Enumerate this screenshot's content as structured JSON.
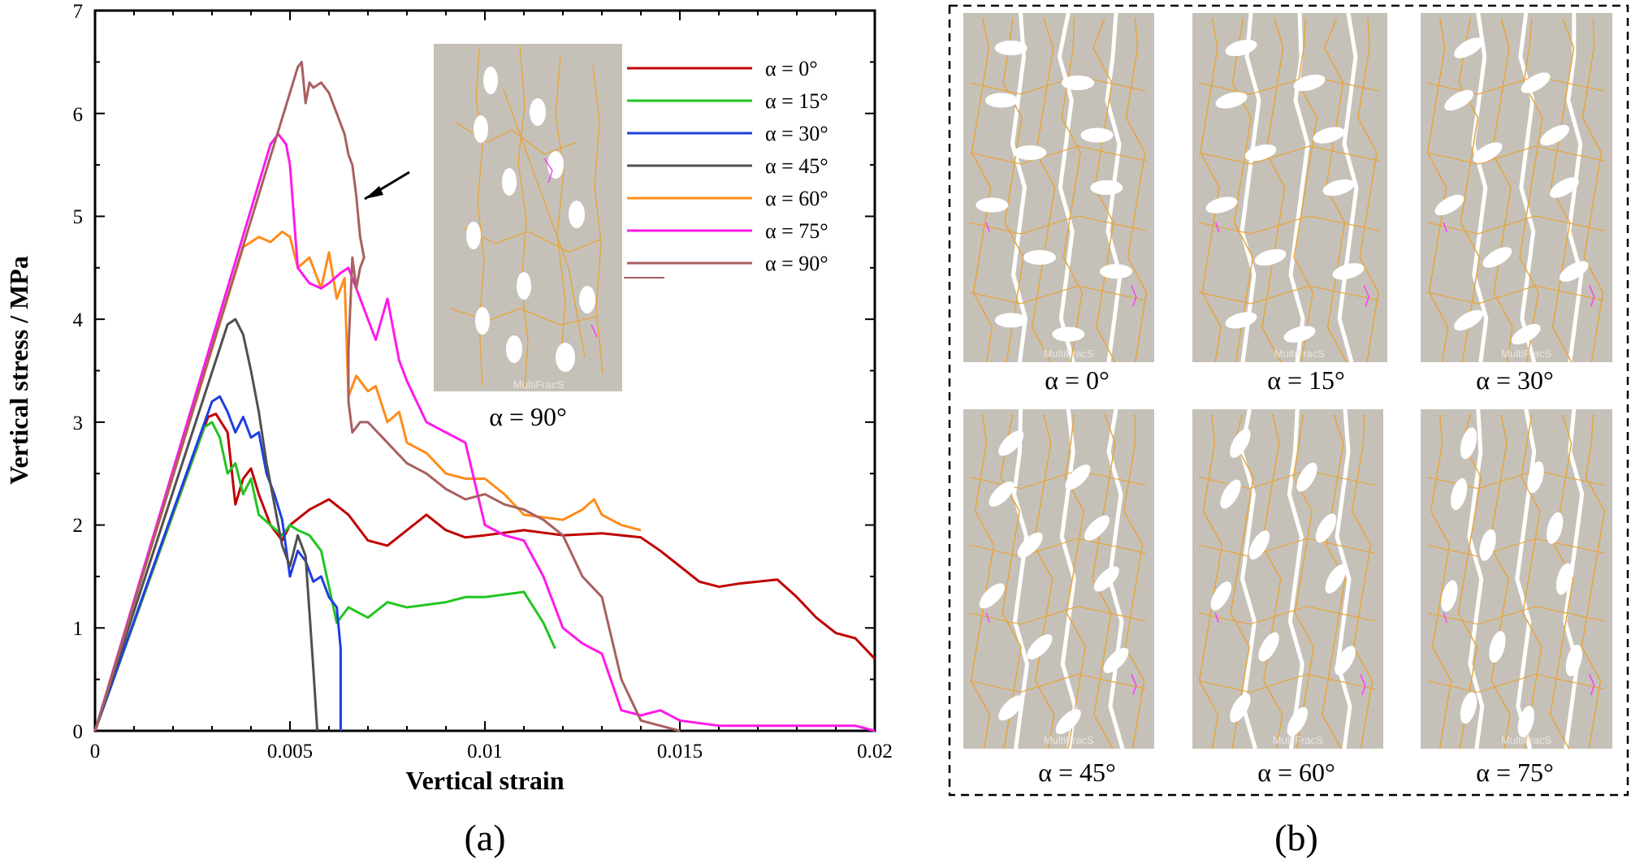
{
  "chart_data": {
    "type": "line",
    "xlabel": "Vertical strain",
    "ylabel": "Vertical  stress / MPa",
    "xlim": [
      0,
      0.02
    ],
    "ylim": [
      0,
      7
    ],
    "xticks": [
      "0",
      "0.005",
      "0.01",
      "0.015",
      "0.02"
    ],
    "yticks": [
      "0",
      "1",
      "2",
      "3",
      "4",
      "5",
      "6",
      "7"
    ],
    "legend_position": "top-right",
    "series": [
      {
        "name": "α = 0°",
        "color": "#c00000",
        "x": [
          0,
          0.0029,
          0.0031,
          0.0034,
          0.0036,
          0.0038,
          0.004,
          0.0042,
          0.0045,
          0.0048,
          0.005,
          0.0055,
          0.006,
          0.0065,
          0.007,
          0.0075,
          0.008,
          0.0085,
          0.009,
          0.0095,
          0.01,
          0.011,
          0.012,
          0.013,
          0.014,
          0.0145,
          0.015,
          0.0155,
          0.016,
          0.0165,
          0.017,
          0.0175,
          0.018,
          0.0185,
          0.019,
          0.0195,
          0.02
        ],
        "y": [
          0,
          3.05,
          3.08,
          2.9,
          2.2,
          2.45,
          2.55,
          2.3,
          2.0,
          1.85,
          2.0,
          2.15,
          2.25,
          2.1,
          1.85,
          1.8,
          1.95,
          2.1,
          1.95,
          1.88,
          1.9,
          1.95,
          1.9,
          1.92,
          1.88,
          1.75,
          1.6,
          1.45,
          1.4,
          1.43,
          1.45,
          1.47,
          1.3,
          1.1,
          0.95,
          0.9,
          0.7
        ]
      },
      {
        "name": "α = 15°",
        "color": "#22c422",
        "x": [
          0,
          0.0028,
          0.003,
          0.0032,
          0.0034,
          0.0036,
          0.0038,
          0.004,
          0.0042,
          0.0045,
          0.0048,
          0.005,
          0.0052,
          0.0055,
          0.0058,
          0.006,
          0.0062,
          0.0065,
          0.007,
          0.0075,
          0.008,
          0.009,
          0.0095,
          0.01,
          0.011,
          0.0115,
          0.0118
        ],
        "y": [
          0,
          2.95,
          3.0,
          2.85,
          2.5,
          2.6,
          2.3,
          2.45,
          2.1,
          2.0,
          1.9,
          2.0,
          1.95,
          1.9,
          1.75,
          1.4,
          1.05,
          1.2,
          1.1,
          1.25,
          1.2,
          1.25,
          1.3,
          1.3,
          1.35,
          1.05,
          0.8
        ]
      },
      {
        "name": "α = 30°",
        "color": "#1f3fe0",
        "x": [
          0,
          0.003,
          0.0032,
          0.0034,
          0.0036,
          0.0038,
          0.004,
          0.0042,
          0.0044,
          0.0046,
          0.0048,
          0.005,
          0.0052,
          0.0054,
          0.0056,
          0.0058,
          0.006,
          0.0062,
          0.0063,
          0.0063
        ],
        "y": [
          0,
          3.2,
          3.25,
          3.1,
          2.9,
          3.05,
          2.85,
          2.9,
          2.5,
          2.3,
          2.05,
          1.5,
          1.75,
          1.65,
          1.45,
          1.5,
          1.3,
          1.2,
          0.8,
          0
        ]
      },
      {
        "name": "α = 45°",
        "color": "#505050",
        "x": [
          0,
          0.0034,
          0.0036,
          0.0038,
          0.004,
          0.0042,
          0.0044,
          0.0046,
          0.0048,
          0.005,
          0.0052,
          0.0054,
          0.0056,
          0.0057
        ],
        "y": [
          0,
          3.95,
          4.0,
          3.85,
          3.5,
          3.1,
          2.6,
          2.2,
          1.8,
          1.6,
          1.9,
          1.7,
          0.6,
          0
        ]
      },
      {
        "name": "α = 60°",
        "color": "#ff8c1a",
        "x": [
          0,
          0.0038,
          0.004,
          0.0042,
          0.0045,
          0.0048,
          0.005,
          0.0052,
          0.0055,
          0.0058,
          0.006,
          0.0062,
          0.0064,
          0.0065,
          0.0067,
          0.007,
          0.0072,
          0.0075,
          0.0078,
          0.008,
          0.0085,
          0.009,
          0.0095,
          0.01,
          0.0105,
          0.011,
          0.012,
          0.0125,
          0.0128,
          0.013,
          0.0135,
          0.014
        ],
        "y": [
          0,
          4.7,
          4.75,
          4.8,
          4.75,
          4.85,
          4.8,
          4.5,
          4.6,
          4.3,
          4.65,
          4.2,
          4.4,
          3.25,
          3.45,
          3.3,
          3.35,
          3.0,
          3.1,
          2.8,
          2.7,
          2.5,
          2.45,
          2.45,
          2.3,
          2.1,
          2.05,
          2.15,
          2.25,
          2.1,
          2.0,
          1.95
        ]
      },
      {
        "name": "α = 75°",
        "color": "#ff1ae8",
        "x": [
          0,
          0.0045,
          0.0047,
          0.0049,
          0.005,
          0.0052,
          0.0055,
          0.0058,
          0.006,
          0.0063,
          0.0065,
          0.007,
          0.0072,
          0.0075,
          0.0078,
          0.008,
          0.0085,
          0.009,
          0.0095,
          0.01,
          0.0105,
          0.011,
          0.0115,
          0.012,
          0.0125,
          0.013,
          0.0135,
          0.014,
          0.0145,
          0.015,
          0.016,
          0.017,
          0.018,
          0.019,
          0.0195,
          0.02
        ],
        "y": [
          0,
          5.7,
          5.8,
          5.7,
          5.5,
          4.5,
          4.35,
          4.3,
          4.35,
          4.45,
          4.5,
          4.0,
          3.8,
          4.2,
          3.6,
          3.4,
          3.0,
          2.9,
          2.8,
          2.0,
          1.9,
          1.85,
          1.5,
          1.0,
          0.85,
          0.75,
          0.2,
          0.15,
          0.2,
          0.1,
          0.05,
          0.05,
          0.05,
          0.05,
          0.05,
          0.0
        ]
      },
      {
        "name": "α = 90°",
        "color": "#a86060",
        "x": [
          0,
          0.0052,
          0.0053,
          0.0054,
          0.0055,
          0.0056,
          0.0058,
          0.006,
          0.0062,
          0.0064,
          0.0065,
          0.0066,
          0.0067,
          0.0068,
          0.0069,
          0.0068,
          0.0067,
          0.0066,
          0.0065,
          0.0065,
          0.0066,
          0.0067,
          0.0068,
          0.007,
          0.0075,
          0.008,
          0.0085,
          0.009,
          0.0095,
          0.01,
          0.0105,
          0.011,
          0.0115,
          0.012,
          0.0125,
          0.013,
          0.0135,
          0.014,
          0.0145,
          0.015
        ],
        "y": [
          0,
          6.45,
          6.5,
          6.1,
          6.3,
          6.25,
          6.3,
          6.2,
          6.0,
          5.8,
          5.6,
          5.5,
          5.2,
          4.8,
          4.6,
          4.5,
          4.3,
          4.6,
          3.7,
          3.2,
          2.9,
          2.95,
          3.0,
          3.0,
          2.8,
          2.6,
          2.5,
          2.35,
          2.25,
          2.3,
          2.2,
          2.15,
          2.05,
          1.9,
          1.5,
          1.3,
          0.5,
          0.1,
          0.05,
          0.0
        ]
      }
    ]
  },
  "panel_a_label": "(a)",
  "panel_b_label": "(b)",
  "inset": {
    "caption": "α = 90°",
    "watermark": "MultiFracS"
  },
  "panel_b": {
    "watermark": "MultiFracS",
    "captions": [
      "α = 0°",
      "α = 15°",
      "α = 30°",
      "α = 45°",
      "α = 60°",
      "α = 75°"
    ]
  }
}
